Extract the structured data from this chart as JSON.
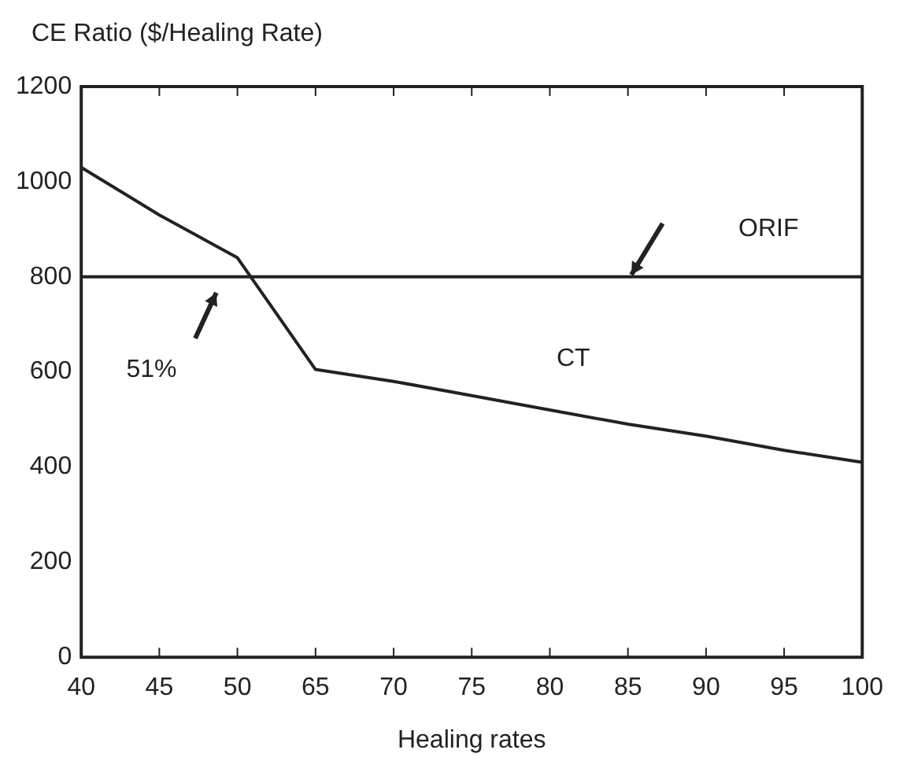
{
  "chart_data": {
    "type": "line",
    "ylabel": "CE Ratio ($/Healing Rate)",
    "xlabel": "Healing rates",
    "categories": [
      "40",
      "45",
      "50",
      "65",
      "70",
      "75",
      "80",
      "85",
      "90",
      "95",
      "100"
    ],
    "series": [
      {
        "name": "ORIF",
        "color": "#222222",
        "values": [
          800,
          800,
          800,
          800,
          800,
          800,
          800,
          800,
          800,
          800,
          800
        ]
      },
      {
        "name": "CT",
        "color": "#222222",
        "values": [
          1030,
          930,
          840,
          605,
          580,
          550,
          520,
          490,
          465,
          435,
          410
        ]
      }
    ],
    "ylim": [
      0,
      1200
    ],
    "yticks": [
      0,
      200,
      400,
      600,
      800,
      1000,
      1200
    ],
    "annotations": [
      "51%"
    ],
    "grid": false,
    "legend": false,
    "marker": "none",
    "line_style": "solid"
  }
}
